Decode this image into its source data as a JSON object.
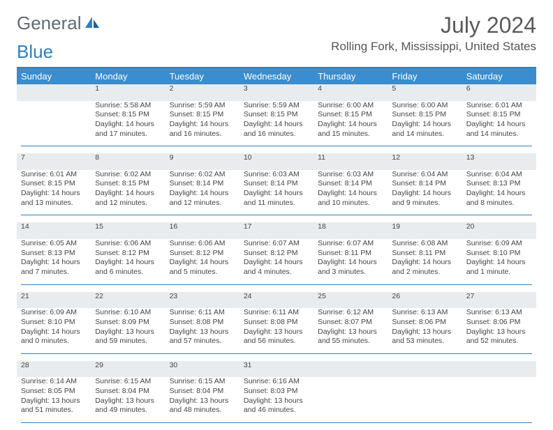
{
  "logo": {
    "text1": "General",
    "text2": "Blue"
  },
  "month_title": "July 2024",
  "location": "Rolling Fork, Mississippi, United States",
  "headers": [
    "Sunday",
    "Monday",
    "Tuesday",
    "Wednesday",
    "Thursday",
    "Friday",
    "Saturday"
  ],
  "colors": {
    "header_bg": "#3a8dce",
    "rule": "#2d7fc1",
    "daynum_bg": "#e9ecef"
  },
  "weeks": [
    {
      "nums": [
        "",
        "1",
        "2",
        "3",
        "4",
        "5",
        "6"
      ],
      "cells": [
        {},
        {
          "sr": "Sunrise: 5:58 AM",
          "ss": "Sunset: 8:15 PM",
          "dl1": "Daylight: 14 hours",
          "dl2": "and 17 minutes."
        },
        {
          "sr": "Sunrise: 5:59 AM",
          "ss": "Sunset: 8:15 PM",
          "dl1": "Daylight: 14 hours",
          "dl2": "and 16 minutes."
        },
        {
          "sr": "Sunrise: 5:59 AM",
          "ss": "Sunset: 8:15 PM",
          "dl1": "Daylight: 14 hours",
          "dl2": "and 16 minutes."
        },
        {
          "sr": "Sunrise: 6:00 AM",
          "ss": "Sunset: 8:15 PM",
          "dl1": "Daylight: 14 hours",
          "dl2": "and 15 minutes."
        },
        {
          "sr": "Sunrise: 6:00 AM",
          "ss": "Sunset: 8:15 PM",
          "dl1": "Daylight: 14 hours",
          "dl2": "and 14 minutes."
        },
        {
          "sr": "Sunrise: 6:01 AM",
          "ss": "Sunset: 8:15 PM",
          "dl1": "Daylight: 14 hours",
          "dl2": "and 14 minutes."
        }
      ]
    },
    {
      "nums": [
        "7",
        "8",
        "9",
        "10",
        "11",
        "12",
        "13"
      ],
      "cells": [
        {
          "sr": "Sunrise: 6:01 AM",
          "ss": "Sunset: 8:15 PM",
          "dl1": "Daylight: 14 hours",
          "dl2": "and 13 minutes."
        },
        {
          "sr": "Sunrise: 6:02 AM",
          "ss": "Sunset: 8:15 PM",
          "dl1": "Daylight: 14 hours",
          "dl2": "and 12 minutes."
        },
        {
          "sr": "Sunrise: 6:02 AM",
          "ss": "Sunset: 8:14 PM",
          "dl1": "Daylight: 14 hours",
          "dl2": "and 12 minutes."
        },
        {
          "sr": "Sunrise: 6:03 AM",
          "ss": "Sunset: 8:14 PM",
          "dl1": "Daylight: 14 hours",
          "dl2": "and 11 minutes."
        },
        {
          "sr": "Sunrise: 6:03 AM",
          "ss": "Sunset: 8:14 PM",
          "dl1": "Daylight: 14 hours",
          "dl2": "and 10 minutes."
        },
        {
          "sr": "Sunrise: 6:04 AM",
          "ss": "Sunset: 8:14 PM",
          "dl1": "Daylight: 14 hours",
          "dl2": "and 9 minutes."
        },
        {
          "sr": "Sunrise: 6:04 AM",
          "ss": "Sunset: 8:13 PM",
          "dl1": "Daylight: 14 hours",
          "dl2": "and 8 minutes."
        }
      ]
    },
    {
      "nums": [
        "14",
        "15",
        "16",
        "17",
        "18",
        "19",
        "20"
      ],
      "cells": [
        {
          "sr": "Sunrise: 6:05 AM",
          "ss": "Sunset: 8:13 PM",
          "dl1": "Daylight: 14 hours",
          "dl2": "and 7 minutes."
        },
        {
          "sr": "Sunrise: 6:06 AM",
          "ss": "Sunset: 8:12 PM",
          "dl1": "Daylight: 14 hours",
          "dl2": "and 6 minutes."
        },
        {
          "sr": "Sunrise: 6:06 AM",
          "ss": "Sunset: 8:12 PM",
          "dl1": "Daylight: 14 hours",
          "dl2": "and 5 minutes."
        },
        {
          "sr": "Sunrise: 6:07 AM",
          "ss": "Sunset: 8:12 PM",
          "dl1": "Daylight: 14 hours",
          "dl2": "and 4 minutes."
        },
        {
          "sr": "Sunrise: 6:07 AM",
          "ss": "Sunset: 8:11 PM",
          "dl1": "Daylight: 14 hours",
          "dl2": "and 3 minutes."
        },
        {
          "sr": "Sunrise: 6:08 AM",
          "ss": "Sunset: 8:11 PM",
          "dl1": "Daylight: 14 hours",
          "dl2": "and 2 minutes."
        },
        {
          "sr": "Sunrise: 6:09 AM",
          "ss": "Sunset: 8:10 PM",
          "dl1": "Daylight: 14 hours",
          "dl2": "and 1 minute."
        }
      ]
    },
    {
      "nums": [
        "21",
        "22",
        "23",
        "24",
        "25",
        "26",
        "27"
      ],
      "cells": [
        {
          "sr": "Sunrise: 6:09 AM",
          "ss": "Sunset: 8:10 PM",
          "dl1": "Daylight: 14 hours",
          "dl2": "and 0 minutes."
        },
        {
          "sr": "Sunrise: 6:10 AM",
          "ss": "Sunset: 8:09 PM",
          "dl1": "Daylight: 13 hours",
          "dl2": "and 59 minutes."
        },
        {
          "sr": "Sunrise: 6:11 AM",
          "ss": "Sunset: 8:08 PM",
          "dl1": "Daylight: 13 hours",
          "dl2": "and 57 minutes."
        },
        {
          "sr": "Sunrise: 6:11 AM",
          "ss": "Sunset: 8:08 PM",
          "dl1": "Daylight: 13 hours",
          "dl2": "and 56 minutes."
        },
        {
          "sr": "Sunrise: 6:12 AM",
          "ss": "Sunset: 8:07 PM",
          "dl1": "Daylight: 13 hours",
          "dl2": "and 55 minutes."
        },
        {
          "sr": "Sunrise: 6:13 AM",
          "ss": "Sunset: 8:06 PM",
          "dl1": "Daylight: 13 hours",
          "dl2": "and 53 minutes."
        },
        {
          "sr": "Sunrise: 6:13 AM",
          "ss": "Sunset: 8:06 PM",
          "dl1": "Daylight: 13 hours",
          "dl2": "and 52 minutes."
        }
      ]
    },
    {
      "nums": [
        "28",
        "29",
        "30",
        "31",
        "",
        "",
        ""
      ],
      "cells": [
        {
          "sr": "Sunrise: 6:14 AM",
          "ss": "Sunset: 8:05 PM",
          "dl1": "Daylight: 13 hours",
          "dl2": "and 51 minutes."
        },
        {
          "sr": "Sunrise: 6:15 AM",
          "ss": "Sunset: 8:04 PM",
          "dl1": "Daylight: 13 hours",
          "dl2": "and 49 minutes."
        },
        {
          "sr": "Sunrise: 6:15 AM",
          "ss": "Sunset: 8:04 PM",
          "dl1": "Daylight: 13 hours",
          "dl2": "and 48 minutes."
        },
        {
          "sr": "Sunrise: 6:16 AM",
          "ss": "Sunset: 8:03 PM",
          "dl1": "Daylight: 13 hours",
          "dl2": "and 46 minutes."
        },
        {},
        {},
        {}
      ]
    }
  ]
}
